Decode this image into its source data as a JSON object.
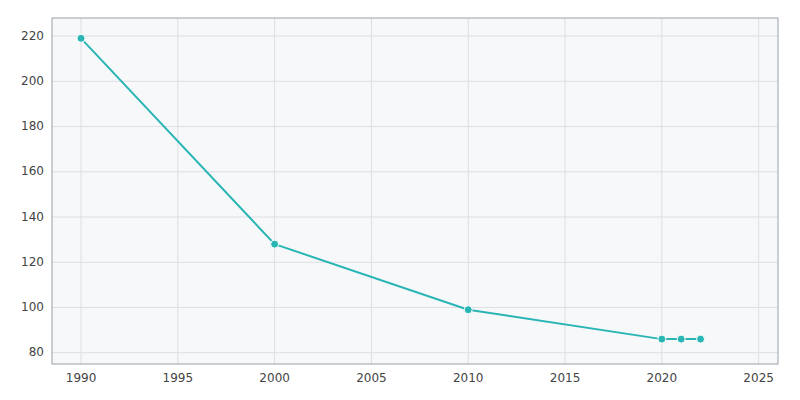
{
  "chart_data": {
    "type": "line",
    "x": [
      1990,
      2000,
      2010,
      2020,
      2021,
      2022
    ],
    "values": [
      219,
      128,
      99,
      86,
      86,
      86
    ],
    "color": "#2ab5b5",
    "marker": "circle",
    "xlim": [
      1988.5,
      2026
    ],
    "ylim": [
      75,
      228
    ],
    "xticks": [
      1990,
      1995,
      2000,
      2005,
      2010,
      2015,
      2020,
      2025
    ],
    "yticks": [
      80,
      100,
      120,
      140,
      160,
      180,
      200,
      220
    ],
    "grid": true
  }
}
